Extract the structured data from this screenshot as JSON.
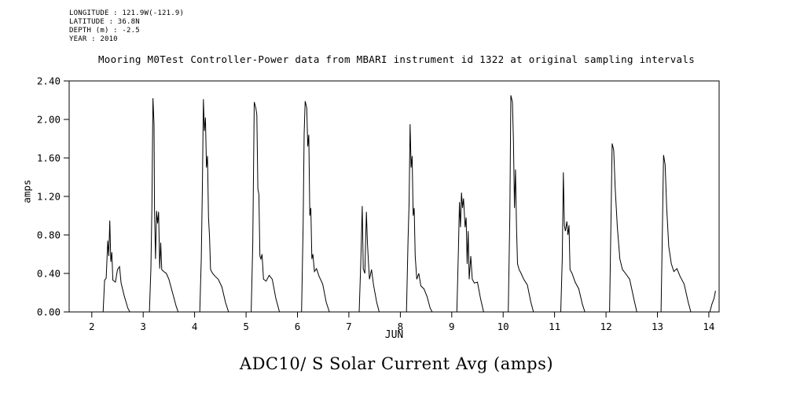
{
  "header_block": {
    "lines": [
      "LONGITUDE : 121.9W(-121.9)",
      "LATITUDE : 36.8N",
      "DEPTH (m) : -2.5",
      "YEAR : 2010"
    ]
  },
  "title": "Mooring M0Test Controller-Power data from MBARI instrument id 1322 at original sampling intervals",
  "caption": "ADC10/ S Solar Current Avg (amps)",
  "chart_data": {
    "type": "line",
    "title": "Mooring M0Test Controller-Power data from MBARI instrument id 1322 at original sampling intervals",
    "xlabel": "JUN",
    "ylabel": "amps",
    "xlim": [
      1.56,
      14.2
    ],
    "ylim": [
      0.0,
      2.4
    ],
    "xticks": [
      2,
      3,
      4,
      5,
      6,
      7,
      8,
      9,
      10,
      11,
      12,
      13,
      14
    ],
    "yticks": [
      0.0,
      0.4,
      0.8,
      1.2,
      1.6,
      2.0,
      2.4
    ],
    "grid": false,
    "line_color": "#000000",
    "background": "#ffffff",
    "points": [
      [
        1.56,
        0
      ],
      [
        2.22,
        0
      ],
      [
        2.25,
        0.33
      ],
      [
        2.28,
        0.35
      ],
      [
        2.31,
        0.74
      ],
      [
        2.33,
        0.58
      ],
      [
        2.35,
        0.95
      ],
      [
        2.37,
        0.52
      ],
      [
        2.39,
        0.62
      ],
      [
        2.41,
        0.33
      ],
      [
        2.46,
        0.31
      ],
      [
        2.5,
        0.44
      ],
      [
        2.54,
        0.47
      ],
      [
        2.57,
        0.3
      ],
      [
        2.63,
        0.17
      ],
      [
        2.7,
        0.04
      ],
      [
        2.74,
        0
      ],
      [
        3.12,
        0
      ],
      [
        3.15,
        0.45
      ],
      [
        3.17,
        1.1
      ],
      [
        3.19,
        2.22
      ],
      [
        3.21,
        1.95
      ],
      [
        3.22,
        1.05
      ],
      [
        3.24,
        0.55
      ],
      [
        3.26,
        1.05
      ],
      [
        3.28,
        0.92
      ],
      [
        3.3,
        1.04
      ],
      [
        3.32,
        0.45
      ],
      [
        3.34,
        0.72
      ],
      [
        3.36,
        0.44
      ],
      [
        3.4,
        0.42
      ],
      [
        3.45,
        0.4
      ],
      [
        3.5,
        0.34
      ],
      [
        3.57,
        0.2
      ],
      [
        3.64,
        0.06
      ],
      [
        3.68,
        0
      ],
      [
        4.1,
        0
      ],
      [
        4.13,
        0.55
      ],
      [
        4.15,
        1.3
      ],
      [
        4.17,
        2.21
      ],
      [
        4.19,
        1.88
      ],
      [
        4.21,
        2.02
      ],
      [
        4.23,
        1.5
      ],
      [
        4.25,
        1.62
      ],
      [
        4.27,
        0.98
      ],
      [
        4.29,
        0.78
      ],
      [
        4.31,
        0.44
      ],
      [
        4.35,
        0.4
      ],
      [
        4.4,
        0.37
      ],
      [
        4.46,
        0.34
      ],
      [
        4.53,
        0.26
      ],
      [
        4.6,
        0.1
      ],
      [
        4.66,
        0
      ],
      [
        5.1,
        0
      ],
      [
        5.13,
        0.7
      ],
      [
        5.16,
        2.18
      ],
      [
        5.19,
        2.12
      ],
      [
        5.21,
        2.05
      ],
      [
        5.23,
        1.28
      ],
      [
        5.25,
        1.22
      ],
      [
        5.27,
        0.58
      ],
      [
        5.29,
        0.55
      ],
      [
        5.31,
        0.6
      ],
      [
        5.34,
        0.34
      ],
      [
        5.39,
        0.32
      ],
      [
        5.45,
        0.38
      ],
      [
        5.51,
        0.34
      ],
      [
        5.58,
        0.14
      ],
      [
        5.65,
        0
      ],
      [
        6.08,
        0
      ],
      [
        6.11,
        0.9
      ],
      [
        6.13,
        1.85
      ],
      [
        6.15,
        2.19
      ],
      [
        6.18,
        2.12
      ],
      [
        6.2,
        1.72
      ],
      [
        6.22,
        1.84
      ],
      [
        6.24,
        1.0
      ],
      [
        6.26,
        1.08
      ],
      [
        6.28,
        0.55
      ],
      [
        6.3,
        0.6
      ],
      [
        6.33,
        0.42
      ],
      [
        6.37,
        0.45
      ],
      [
        6.42,
        0.37
      ],
      [
        6.49,
        0.29
      ],
      [
        6.56,
        0.1
      ],
      [
        6.62,
        0
      ],
      [
        7.2,
        0
      ],
      [
        7.23,
        0.5
      ],
      [
        7.26,
        1.1
      ],
      [
        7.28,
        0.45
      ],
      [
        7.31,
        0.4
      ],
      [
        7.34,
        1.04
      ],
      [
        7.36,
        0.72
      ],
      [
        7.38,
        0.52
      ],
      [
        7.4,
        0.34
      ],
      [
        7.44,
        0.44
      ],
      [
        7.48,
        0.28
      ],
      [
        7.54,
        0.1
      ],
      [
        7.59,
        0
      ],
      [
        8.12,
        0
      ],
      [
        8.15,
        0.75
      ],
      [
        8.17,
        1.12
      ],
      [
        8.19,
        1.95
      ],
      [
        8.21,
        1.5
      ],
      [
        8.23,
        1.62
      ],
      [
        8.25,
        1.0
      ],
      [
        8.27,
        1.08
      ],
      [
        8.29,
        0.58
      ],
      [
        8.32,
        0.34
      ],
      [
        8.36,
        0.4
      ],
      [
        8.4,
        0.27
      ],
      [
        8.46,
        0.24
      ],
      [
        8.52,
        0.16
      ],
      [
        8.58,
        0.04
      ],
      [
        8.62,
        0
      ],
      [
        9.1,
        0
      ],
      [
        9.13,
        0.65
      ],
      [
        9.15,
        1.14
      ],
      [
        9.17,
        0.88
      ],
      [
        9.19,
        1.24
      ],
      [
        9.21,
        1.08
      ],
      [
        9.23,
        1.18
      ],
      [
        9.26,
        0.88
      ],
      [
        9.28,
        0.98
      ],
      [
        9.3,
        0.5
      ],
      [
        9.32,
        0.84
      ],
      [
        9.34,
        0.34
      ],
      [
        9.37,
        0.58
      ],
      [
        9.4,
        0.34
      ],
      [
        9.44,
        0.3
      ],
      [
        9.5,
        0.31
      ],
      [
        9.56,
        0.14
      ],
      [
        9.62,
        0
      ],
      [
        10.1,
        0
      ],
      [
        10.13,
        1.0
      ],
      [
        10.15,
        2.25
      ],
      [
        10.18,
        2.18
      ],
      [
        10.2,
        1.78
      ],
      [
        10.22,
        1.08
      ],
      [
        10.24,
        1.48
      ],
      [
        10.26,
        0.88
      ],
      [
        10.28,
        0.5
      ],
      [
        10.31,
        0.44
      ],
      [
        10.35,
        0.4
      ],
      [
        10.4,
        0.34
      ],
      [
        10.47,
        0.28
      ],
      [
        10.54,
        0.1
      ],
      [
        10.59,
        0
      ],
      [
        11.12,
        0
      ],
      [
        11.15,
        0.55
      ],
      [
        11.17,
        1.45
      ],
      [
        11.19,
        0.9
      ],
      [
        11.21,
        0.84
      ],
      [
        11.24,
        0.94
      ],
      [
        11.26,
        0.8
      ],
      [
        11.28,
        0.9
      ],
      [
        11.3,
        0.44
      ],
      [
        11.34,
        0.4
      ],
      [
        11.4,
        0.31
      ],
      [
        11.47,
        0.24
      ],
      [
        11.54,
        0.08
      ],
      [
        11.59,
        0
      ],
      [
        12.07,
        0
      ],
      [
        12.1,
        1.05
      ],
      [
        12.12,
        1.75
      ],
      [
        12.15,
        1.68
      ],
      [
        12.18,
        1.28
      ],
      [
        12.22,
        0.88
      ],
      [
        12.27,
        0.55
      ],
      [
        12.32,
        0.44
      ],
      [
        12.38,
        0.4
      ],
      [
        12.46,
        0.34
      ],
      [
        12.54,
        0.14
      ],
      [
        12.6,
        0
      ],
      [
        13.07,
        0
      ],
      [
        13.1,
        0.95
      ],
      [
        13.12,
        1.63
      ],
      [
        13.15,
        1.53
      ],
      [
        13.18,
        1.08
      ],
      [
        13.22,
        0.68
      ],
      [
        13.27,
        0.5
      ],
      [
        13.32,
        0.42
      ],
      [
        13.38,
        0.45
      ],
      [
        13.44,
        0.37
      ],
      [
        13.52,
        0.29
      ],
      [
        13.6,
        0.1
      ],
      [
        13.65,
        0
      ],
      [
        14.02,
        0
      ],
      [
        14.06,
        0.08
      ],
      [
        14.1,
        0.14
      ],
      [
        14.13,
        0.22
      ]
    ]
  }
}
